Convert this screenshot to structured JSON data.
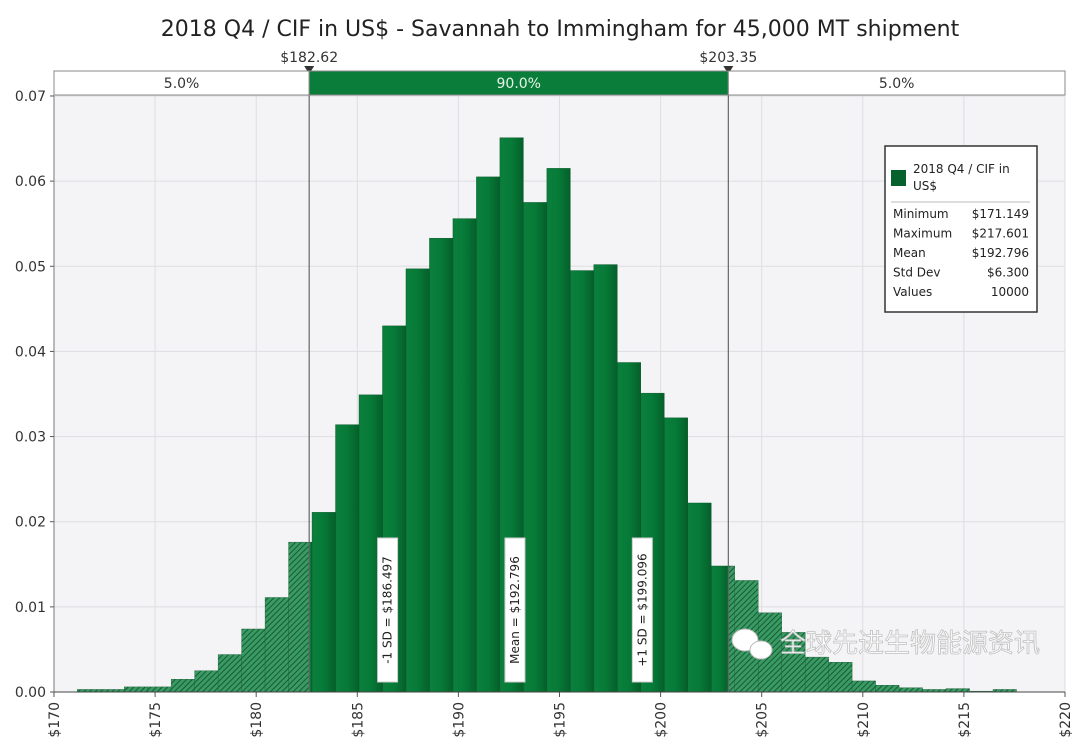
{
  "chart_data": {
    "type": "bar",
    "title": "2018 Q4 / CIF in US$ - Savannah to Immingham for 45,000 MT shipment",
    "xlabel": "",
    "ylabel": "",
    "xlim": [
      170,
      220
    ],
    "ylim": [
      0,
      0.07
    ],
    "x_ticks": [
      "$170",
      "$175",
      "$180",
      "$185",
      "$190",
      "$195",
      "$200",
      "$205",
      "$210",
      "$215",
      "$220"
    ],
    "y_ticks": [
      "0.00",
      "0.01",
      "0.02",
      "0.03",
      "0.04",
      "0.05",
      "0.06",
      "0.07"
    ],
    "grid": true,
    "bin_start": 171.149,
    "bin_end": 217.601,
    "values": [
      0.0003,
      0.0003,
      0.0006,
      0.0006,
      0.0015,
      0.0025,
      0.0044,
      0.0074,
      0.0111,
      0.0176,
      0.0211,
      0.0314,
      0.0349,
      0.043,
      0.0497,
      0.0533,
      0.0556,
      0.0605,
      0.0651,
      0.0575,
      0.0615,
      0.0495,
      0.0502,
      0.0387,
      0.0351,
      0.0322,
      0.0222,
      0.0148,
      0.0131,
      0.0093,
      0.007,
      0.0041,
      0.0035,
      0.0013,
      0.0008,
      0.0005,
      0.0003,
      0.0004,
      0.0001,
      0.0003
    ],
    "delimiters": {
      "left": {
        "value": 182.62,
        "label": "$182.62"
      },
      "right": {
        "value": 203.35,
        "label": "$203.35"
      },
      "bands": [
        "5.0%",
        "90.0%",
        "5.0%"
      ]
    },
    "markers": [
      {
        "value": 186.497,
        "label": "-1 SD = $186.497"
      },
      {
        "value": 192.796,
        "label": "Mean = $192.796"
      },
      {
        "value": 199.096,
        "label": "+1 SD = $199.096"
      }
    ],
    "legend": {
      "position": "top-right",
      "series_name": [
        "2018 Q4 / CIF in",
        "US$"
      ],
      "stats": [
        {
          "label": "Minimum",
          "value": "$171.149"
        },
        {
          "label": "Maximum",
          "value": "$217.601"
        },
        {
          "label": "Mean",
          "value": "$192.796"
        },
        {
          "label": "Std Dev",
          "value": "$6.300"
        },
        {
          "label": "Values",
          "value": "10000"
        }
      ]
    },
    "colors": {
      "bar": "#0a7a3a",
      "bar_dark": "#06612c",
      "tail": "#2e8b57",
      "band": "#0b7d3b",
      "plot_bg": "#f4f4f6"
    }
  },
  "watermark": "全球先进生物能源资讯"
}
